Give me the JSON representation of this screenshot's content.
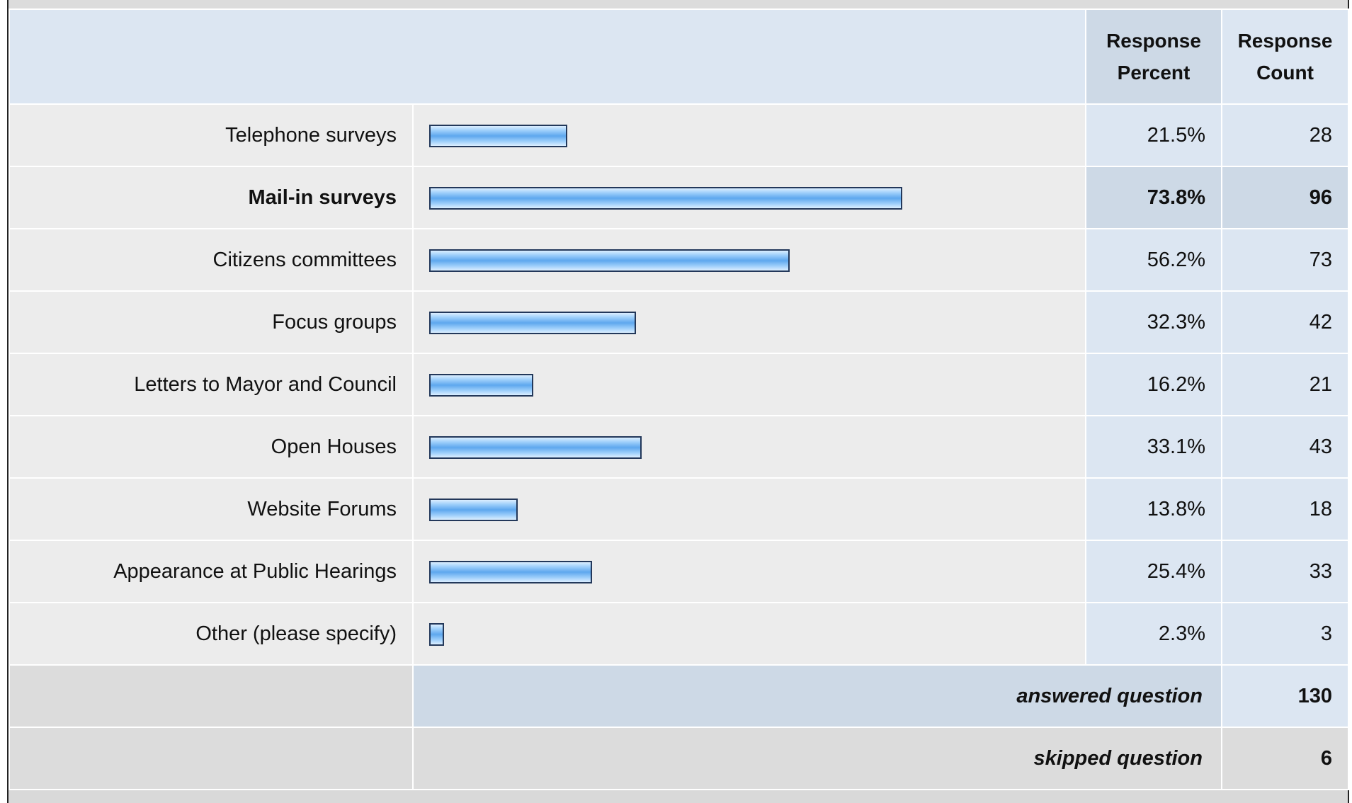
{
  "chart_data": {
    "type": "bar",
    "orientation": "horizontal",
    "xlim": [
      0,
      100
    ],
    "headers": {
      "percent": "Response Percent",
      "count": "Response Count",
      "percent_line1": "Response",
      "percent_line2": "Percent",
      "count_line1": "Response",
      "count_line2": "Count"
    },
    "rows": [
      {
        "label": "Telephone surveys",
        "percent": 21.5,
        "percent_text": "21.5%",
        "count": "28",
        "highlight": false
      },
      {
        "label": "Mail-in surveys",
        "percent": 73.8,
        "percent_text": "73.8%",
        "count": "96",
        "highlight": true
      },
      {
        "label": "Citizens committees",
        "percent": 56.2,
        "percent_text": "56.2%",
        "count": "73",
        "highlight": false
      },
      {
        "label": "Focus groups",
        "percent": 32.3,
        "percent_text": "32.3%",
        "count": "42",
        "highlight": false
      },
      {
        "label": "Letters to Mayor and Council",
        "percent": 16.2,
        "percent_text": "16.2%",
        "count": "21",
        "highlight": false
      },
      {
        "label": "Open Houses",
        "percent": 33.1,
        "percent_text": "33.1%",
        "count": "43",
        "highlight": false
      },
      {
        "label": "Website Forums",
        "percent": 13.8,
        "percent_text": "13.8%",
        "count": "18",
        "highlight": false
      },
      {
        "label": "Appearance at Public Hearings",
        "percent": 25.4,
        "percent_text": "25.4%",
        "count": "33",
        "highlight": false
      },
      {
        "label": "Other (please specify)",
        "percent": 2.3,
        "percent_text": "2.3%",
        "count": "3",
        "highlight": false
      }
    ],
    "summary": {
      "answered_label": "answered question",
      "answered_value": "130",
      "skipped_label": "skipped question",
      "skipped_value": "6"
    }
  },
  "colors": {
    "bar_border": "#23385a",
    "bar_fill": "#5ea7ee",
    "header_bg": "#dce6f2",
    "highlight_bg": "#cdd9e6",
    "row_bg": "#ececec"
  }
}
